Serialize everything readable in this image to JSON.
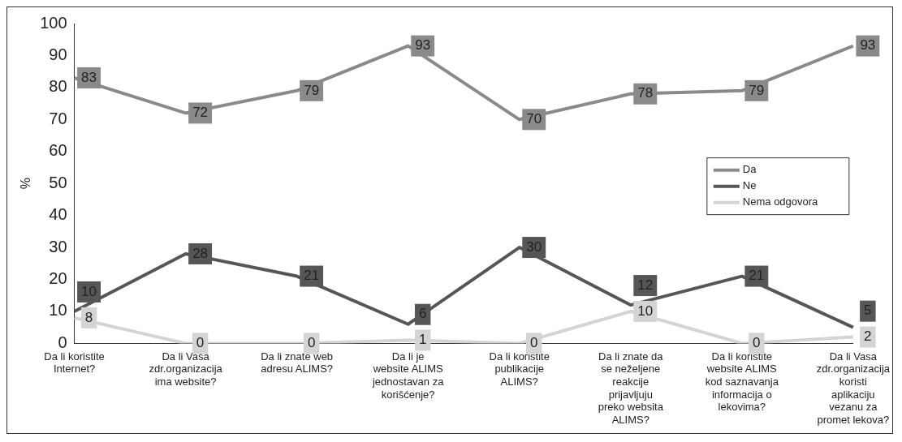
{
  "chart_data": {
    "type": "line",
    "ylabel": "%",
    "categories": [
      "Da li koristite Internet?",
      "Da li Vaša zdr.organizacija ima website?",
      "Da li znate web adresu ALIMS?",
      "Da li je website ALIMS jednostavan za korišćenje?",
      "Da li koristite publikacije ALIMS?",
      "Da li znate da se neželjene reakcije prijavljuju preko websita ALIMS?",
      "Da li koristite website ALIMS kod saznavanja informacija o lekovima?",
      "Da li Vasa zdr.organizacija koristi aplikaciju vezanu za promet lekova?"
    ],
    "series": [
      {
        "name": "Da",
        "color": "#8a8a8a",
        "values": [
          83,
          72,
          79,
          93,
          70,
          78,
          79,
          93
        ]
      },
      {
        "name": "Ne",
        "color": "#565656",
        "values": [
          10,
          28,
          21,
          6,
          30,
          12,
          21,
          5
        ]
      },
      {
        "name": "Nema odgovora",
        "color": "#d4d4d4",
        "values": [
          8,
          0,
          0,
          1,
          0,
          10,
          0,
          2
        ]
      }
    ],
    "ylim": [
      0,
      100
    ],
    "yticks": [
      0,
      10,
      20,
      30,
      40,
      50,
      60,
      70,
      80,
      90,
      100
    ],
    "grid": false,
    "legend": "right",
    "marker": "none",
    "line_style": "solid",
    "data_labels": true
  }
}
